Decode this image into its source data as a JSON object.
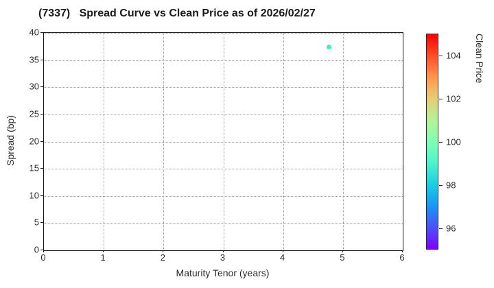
{
  "title": "(7337)   Spread Curve vs Clean Price as of 2026/02/27",
  "chart_data": {
    "type": "scatter",
    "title": "(7337)   Spread Curve vs Clean Price as of 2026/02/27",
    "xlabel": "Maturity Tenor (years)",
    "ylabel": "Spread (bp)",
    "xlim": [
      0,
      6
    ],
    "ylim": [
      0,
      40
    ],
    "xticks": [
      0,
      1,
      2,
      3,
      4,
      5,
      6
    ],
    "yticks": [
      0,
      5,
      10,
      15,
      20,
      25,
      30,
      35,
      40
    ],
    "grid": true,
    "grid_style": "dotted",
    "legend_position": "none",
    "points": [
      {
        "x": 4.78,
        "y": 37.3,
        "clean_price": 98.9,
        "color": "#4de8c8"
      }
    ],
    "colorbar": {
      "label": "Clean Price",
      "min": 95,
      "max": 105,
      "ticks": [
        96,
        98,
        100,
        102,
        104
      ],
      "colormap": "rainbow",
      "gradient_stops": [
        {
          "pos": 0,
          "color": "#8000ff"
        },
        {
          "pos": 10,
          "color": "#4d4ffc"
        },
        {
          "pos": 20,
          "color": "#1a96f3"
        },
        {
          "pos": 30,
          "color": "#1acee3"
        },
        {
          "pos": 40,
          "color": "#4df3ce"
        },
        {
          "pos": 50,
          "color": "#80ffb4"
        },
        {
          "pos": 60,
          "color": "#b3f396"
        },
        {
          "pos": 70,
          "color": "#e6ce74"
        },
        {
          "pos": 80,
          "color": "#ff964f"
        },
        {
          "pos": 90,
          "color": "#ff4f28"
        },
        {
          "pos": 100,
          "color": "#ff0000"
        }
      ]
    },
    "colors": {
      "background": "#ffffff",
      "frame": "#1a1a1a",
      "grid": "#999999",
      "text": "#2b2b2b"
    }
  }
}
